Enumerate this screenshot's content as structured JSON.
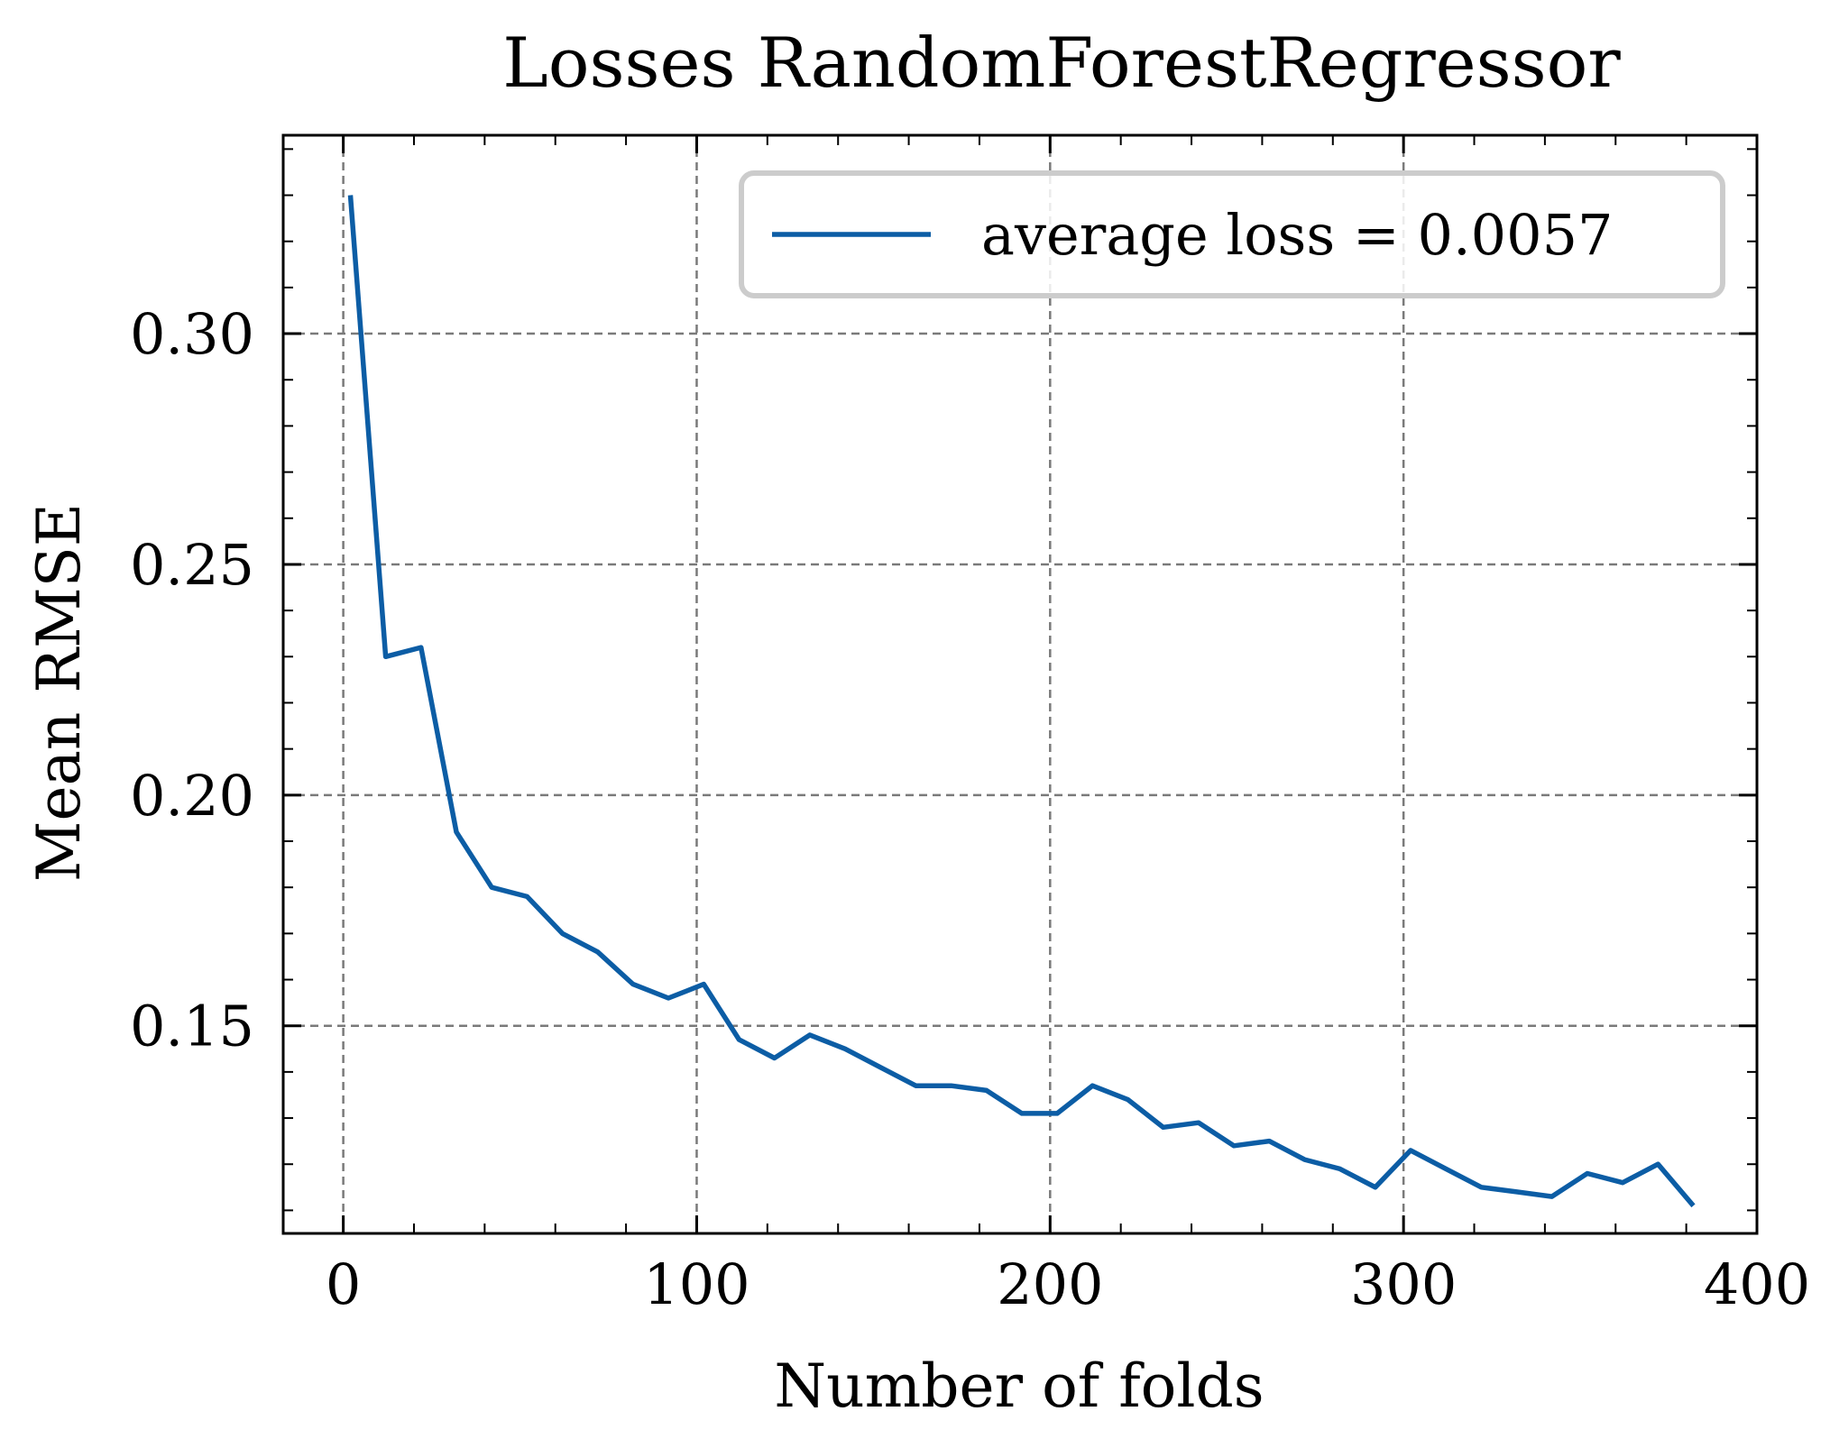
{
  "chart_data": {
    "type": "line",
    "title": "Losses RandomForestRegressor",
    "xlabel": "Number of folds",
    "ylabel": "Mean RMSE",
    "xlim": [
      -17,
      400
    ],
    "ylim": [
      0.105,
      0.343
    ],
    "xticks": [
      0,
      100,
      200,
      300,
      400
    ],
    "xtick_labels": [
      "0",
      "100",
      "200",
      "300",
      "400"
    ],
    "yticks": [
      0.15,
      0.2,
      0.25,
      0.3
    ],
    "ytick_labels": [
      "0.15",
      "0.20",
      "0.25",
      "0.30"
    ],
    "grid": true,
    "legend_position": "top-right",
    "series": [
      {
        "name": "average loss = 0.0057",
        "color": "#0c5da5",
        "x": [
          2,
          12,
          22,
          32,
          42,
          52,
          62,
          72,
          82,
          92,
          102,
          112,
          122,
          132,
          142,
          152,
          162,
          172,
          182,
          192,
          202,
          212,
          222,
          232,
          242,
          252,
          262,
          272,
          282,
          292,
          302,
          312,
          322,
          332,
          342,
          352,
          362,
          372,
          382
        ],
        "y": [
          0.33,
          0.23,
          0.232,
          0.192,
          0.18,
          0.178,
          0.17,
          0.166,
          0.159,
          0.156,
          0.159,
          0.147,
          0.143,
          0.148,
          0.145,
          0.141,
          0.137,
          0.137,
          0.136,
          0.131,
          0.131,
          0.137,
          0.134,
          0.128,
          0.129,
          0.124,
          0.125,
          0.121,
          0.119,
          0.115,
          0.123,
          0.119,
          0.115,
          0.114,
          0.113,
          0.118,
          0.116,
          0.12,
          0.111
        ]
      }
    ]
  }
}
